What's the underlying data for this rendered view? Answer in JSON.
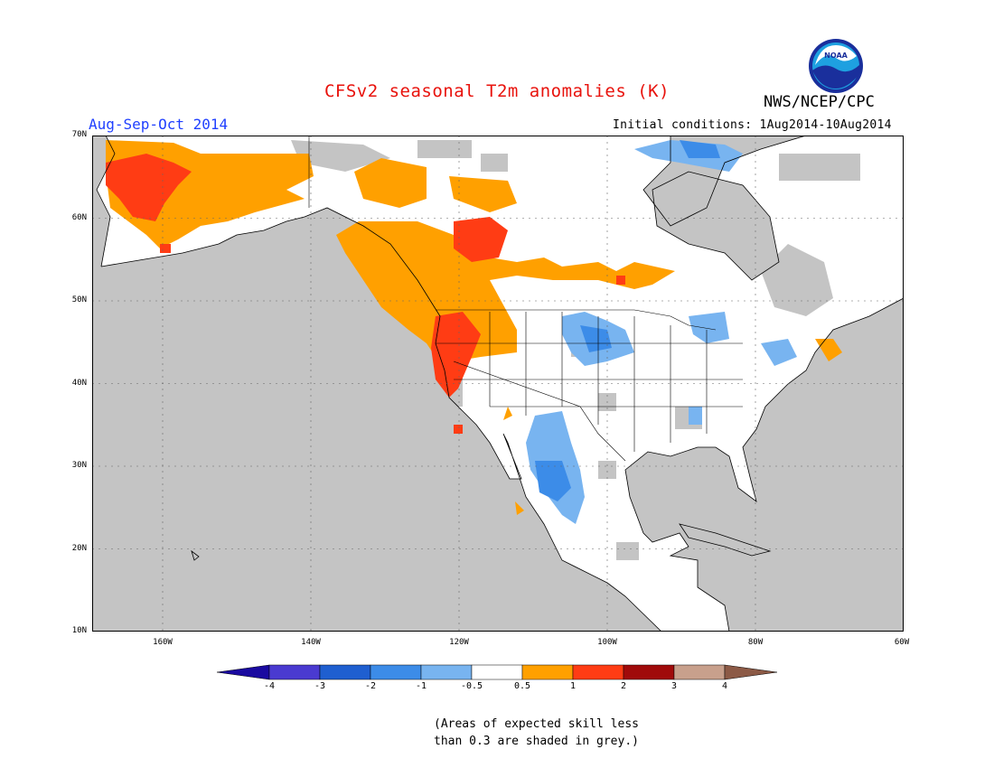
{
  "title": "CFSv2 seasonal T2m anomalies (K)",
  "period": "Aug-Sep-Oct 2014",
  "initial_conditions": "Initial conditions: 1Aug2014-10Aug2014",
  "organization": "NWS/NCEP/CPC",
  "logo_text": "NOAA",
  "lat_labels": [
    "70N",
    "60N",
    "50N",
    "40N",
    "30N",
    "20N",
    "10N"
  ],
  "lon_labels": [
    "160W",
    "140W",
    "120W",
    "100W",
    "80W",
    "60W"
  ],
  "colorbar": {
    "labels": [
      "-4",
      "-3",
      "-2",
      "-1",
      "-0.5",
      "0.5",
      "1",
      "2",
      "3",
      "4"
    ],
    "colors": [
      "#1a0aa0",
      "#4a3ad0",
      "#1f5fd0",
      "#3c8ce8",
      "#78b4f0",
      "#ffffff",
      "#ffa000",
      "#ff3c14",
      "#a00a0a",
      "#c8a08c",
      "#8c5a46"
    ]
  },
  "note_line1": "(Areas of expected skill less",
  "note_line2": "than 0.3 are shaded in grey.)",
  "colors": {
    "grey": "#c4c4c4",
    "orange": "#ffa000",
    "red": "#ff3c14",
    "lightblue": "#78b4f0",
    "blue": "#3c8ce8"
  }
}
